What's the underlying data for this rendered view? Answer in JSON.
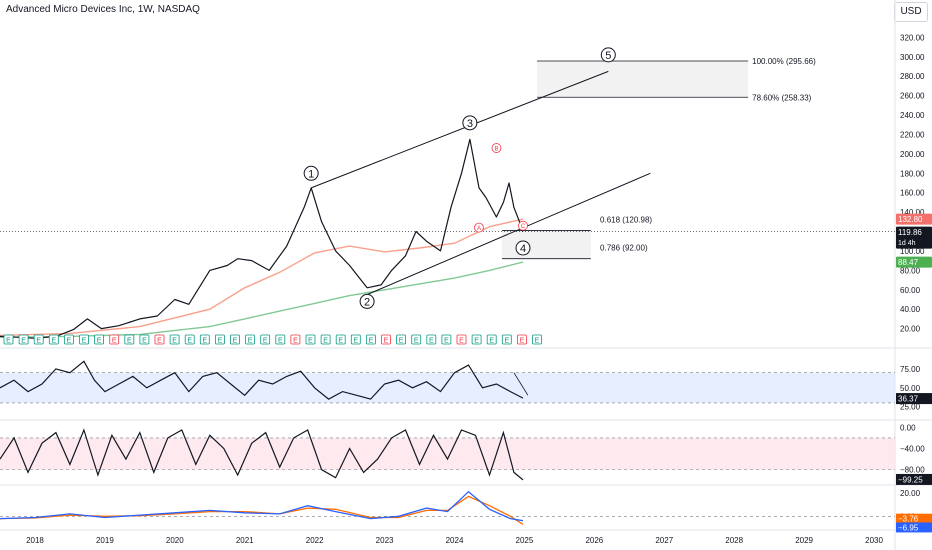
{
  "header": {
    "title": "Advanced Micro Devices Inc, 1W, NASDAQ",
    "currency": "USD"
  },
  "chart_data": {
    "type": "line",
    "price_axis": {
      "min": 0,
      "max": 340,
      "log": false,
      "ticks": [
        20,
        40,
        60,
        80,
        100,
        120,
        140,
        160,
        180,
        200,
        220,
        240,
        260,
        280,
        300,
        320
      ],
      "tick_labels": [
        "20.00",
        "40.00",
        "60.00",
        "80.00",
        "100.00",
        "120.00",
        "140.00",
        "160.00",
        "180.00",
        "200.00",
        "220.00",
        "240.00",
        "260.00",
        "280.00",
        "300.00",
        "320.00"
      ]
    },
    "x_axis": {
      "min": 2017.5,
      "max": 2030.3,
      "ticks": [
        2018,
        2019,
        2020,
        2021,
        2022,
        2023,
        2024,
        2025,
        2026,
        2027,
        2028,
        2029,
        2030
      ],
      "tick_labels": [
        "2018",
        "2019",
        "2020",
        "2021",
        "2022",
        "2023",
        "2024",
        "2025",
        "2026",
        "2027",
        "2028",
        "2029",
        "2030"
      ]
    },
    "price_series": {
      "x": [
        2017.5,
        2017.8,
        2018.0,
        2018.3,
        2018.55,
        2018.75,
        2018.95,
        2019.2,
        2019.5,
        2019.75,
        2020.0,
        2020.2,
        2020.5,
        2020.75,
        2020.9,
        2021.1,
        2021.35,
        2021.6,
        2021.85,
        2021.95,
        2022.1,
        2022.3,
        2022.5,
        2022.75,
        2022.95,
        2023.1,
        2023.3,
        2023.45,
        2023.6,
        2023.8,
        2023.95,
        2024.1,
        2024.22,
        2024.35,
        2024.45,
        2024.6,
        2024.7,
        2024.78,
        2024.85,
        2024.93,
        2024.98
      ],
      "values": [
        12,
        11,
        10,
        12,
        19,
        30,
        20,
        23,
        30,
        33,
        50,
        45,
        80,
        85,
        92,
        90,
        80,
        105,
        145,
        165,
        130,
        100,
        85,
        62,
        65,
        80,
        95,
        120,
        110,
        100,
        145,
        180,
        215,
        165,
        155,
        135,
        150,
        170,
        145,
        130,
        120
      ]
    },
    "moving_averages": [
      {
        "color": "#f9a08b",
        "x": [
          2017.5,
          2018.5,
          2019.5,
          2020.5,
          2021.0,
          2021.5,
          2022.0,
          2022.5,
          2023.0,
          2023.5,
          2024.0,
          2024.5,
          2024.98
        ],
        "values": [
          13,
          15,
          22,
          40,
          62,
          78,
          98,
          105,
          99,
          103,
          108,
          125,
          132.8
        ]
      },
      {
        "color": "#81c995",
        "x": [
          2017.5,
          2018.5,
          2019.5,
          2020.5,
          2021.0,
          2021.5,
          2022.0,
          2022.5,
          2023.0,
          2023.5,
          2024.0,
          2024.5,
          2024.98
        ],
        "values": [
          11,
          12,
          14,
          22,
          30,
          38,
          46,
          54,
          60,
          66,
          72,
          80,
          88.47
        ]
      }
    ],
    "last_values": [
      {
        "label": "132.80",
        "value": 132.8,
        "color": "#f4706b"
      },
      {
        "label": "119.86",
        "sub": "1d 4h",
        "value": 119.86,
        "color": "#131722"
      },
      {
        "label": "88.47",
        "value": 88.47,
        "color": "#4caf50"
      }
    ],
    "wave_labels": [
      {
        "label": "1",
        "x": 2021.95,
        "y": 180
      },
      {
        "label": "2",
        "x": 2022.75,
        "y": 48
      },
      {
        "label": "3",
        "x": 2024.22,
        "y": 232
      },
      {
        "label": "4",
        "x": 2024.98,
        "y": 103
      },
      {
        "label": "5",
        "x": 2026.2,
        "y": 302
      }
    ],
    "abc_labels": [
      {
        "label": "A",
        "x": 2024.35,
        "y": 124
      },
      {
        "label": "B",
        "x": 2024.6,
        "y": 206
      },
      {
        "label": "C",
        "x": 2024.98,
        "y": 126
      }
    ],
    "fibs": [
      {
        "label": "100.00% (295.66)",
        "value": 295.66,
        "x0": 2025.18,
        "x1": 2028.2
      },
      {
        "label": "78.60% (258.33)",
        "value": 258.33,
        "x0": 2025.18,
        "x1": 2028.2
      },
      {
        "label": "0.618 (120.98)",
        "value": 120.98,
        "x0": 2024.68,
        "x1": 2025.95
      },
      {
        "label": "0.786 (92.00)",
        "value": 92.0,
        "x0": 2024.68,
        "x1": 2025.95
      }
    ],
    "trendlines": [
      {
        "x0": 2021.95,
        "y0": 165,
        "x1": 2026.2,
        "y1": 285
      },
      {
        "x0": 2022.75,
        "y0": 55,
        "x1": 2026.8,
        "y1": 180
      }
    ],
    "earnings_markers": {
      "labels": [
        "E",
        "E",
        "E",
        "E",
        "E",
        "E",
        "E",
        "E",
        "E",
        "E",
        "E",
        "E",
        "E",
        "E",
        "E",
        "E",
        "E",
        "E",
        "E",
        "E",
        "E",
        "E",
        "E",
        "E",
        "E",
        "E",
        "E",
        "E",
        "E",
        "E",
        "E",
        "E",
        "E",
        "E",
        "E",
        "E"
      ],
      "red_indices": [
        7,
        10,
        19,
        25,
        30,
        34
      ]
    },
    "rsi": {
      "ticks": [
        25,
        50,
        75
      ],
      "tick_labels": [
        "25.00",
        "50.00",
        "75.00"
      ],
      "bands": [
        30,
        70
      ],
      "last": "36.37",
      "x": [
        2017.5,
        2017.7,
        2017.9,
        2018.1,
        2018.3,
        2018.5,
        2018.7,
        2018.85,
        2019.0,
        2019.2,
        2019.4,
        2019.6,
        2019.8,
        2020.0,
        2020.2,
        2020.4,
        2020.6,
        2020.8,
        2021.0,
        2021.2,
        2021.4,
        2021.6,
        2021.8,
        2022.0,
        2022.2,
        2022.4,
        2022.6,
        2022.8,
        2023.0,
        2023.2,
        2023.4,
        2023.6,
        2023.8,
        2024.0,
        2024.2,
        2024.4,
        2024.6,
        2024.8,
        2024.98
      ],
      "values": [
        50,
        60,
        45,
        55,
        75,
        70,
        85,
        60,
        45,
        55,
        65,
        50,
        60,
        70,
        45,
        65,
        70,
        55,
        40,
        60,
        55,
        65,
        72,
        50,
        35,
        45,
        40,
        35,
        55,
        60,
        50,
        58,
        45,
        70,
        80,
        50,
        55,
        45,
        36.37
      ],
      "trend": {
        "x0": 2024.85,
        "y0": 70,
        "x1": 2025.05,
        "y1": 40
      }
    },
    "stoch": {
      "ticks": [
        -80,
        -40,
        0
      ],
      "tick_labels": [
        "−80.00",
        "−40.00",
        "0.00"
      ],
      "bands": [
        -80,
        -20
      ],
      "last": "−99.25",
      "x": [
        2017.5,
        2017.7,
        2017.9,
        2018.1,
        2018.3,
        2018.5,
        2018.7,
        2018.9,
        2019.1,
        2019.3,
        2019.5,
        2019.7,
        2019.9,
        2020.1,
        2020.3,
        2020.5,
        2020.7,
        2020.9,
        2021.1,
        2021.3,
        2021.5,
        2021.7,
        2021.9,
        2022.1,
        2022.3,
        2022.5,
        2022.7,
        2022.9,
        2023.1,
        2023.3,
        2023.5,
        2023.7,
        2023.9,
        2024.1,
        2024.3,
        2024.5,
        2024.7,
        2024.85,
        2024.98
      ],
      "values": [
        -60,
        -20,
        -85,
        -30,
        -10,
        -70,
        -5,
        -90,
        -15,
        -60,
        -10,
        -85,
        -20,
        -5,
        -70,
        -15,
        -40,
        -90,
        -30,
        -10,
        -75,
        -20,
        -5,
        -80,
        -95,
        -40,
        -85,
        -60,
        -20,
        -5,
        -70,
        -15,
        -60,
        -5,
        -15,
        -90,
        -10,
        -85,
        -99.25
      ]
    },
    "macd": {
      "ticks": [
        0,
        20
      ],
      "tick_labels": [
        "0.00",
        "20.00"
      ],
      "zero": 0,
      "last_macd": "−3.76",
      "last_signal": "−6.95",
      "x": [
        2017.5,
        2018.0,
        2018.5,
        2019.0,
        2019.5,
        2020.0,
        2020.5,
        2021.0,
        2021.5,
        2021.9,
        2022.3,
        2022.8,
        2023.2,
        2023.6,
        2023.9,
        2024.2,
        2024.5,
        2024.8,
        2024.98
      ],
      "macd": [
        -2,
        -1,
        2,
        -1,
        1,
        3,
        5,
        3,
        2,
        9,
        4,
        -2,
        0,
        7,
        4,
        21,
        6,
        -2,
        -3.76
      ],
      "signal": [
        -2,
        -1.5,
        1,
        0,
        0.5,
        2,
        4,
        4,
        2,
        7,
        6,
        -1,
        -1,
        5,
        5,
        17,
        9,
        0,
        -6.95
      ],
      "macd_color": "#2962ff",
      "signal_color": "#ff6d00"
    }
  },
  "colors": {
    "price": "#131722",
    "axis_text": "#131722",
    "grid": "#e0e3eb",
    "rsi_fill": "#dde7ff",
    "stoch_fill": "#fde4ea",
    "fib_fill": "#e9e9e9"
  }
}
